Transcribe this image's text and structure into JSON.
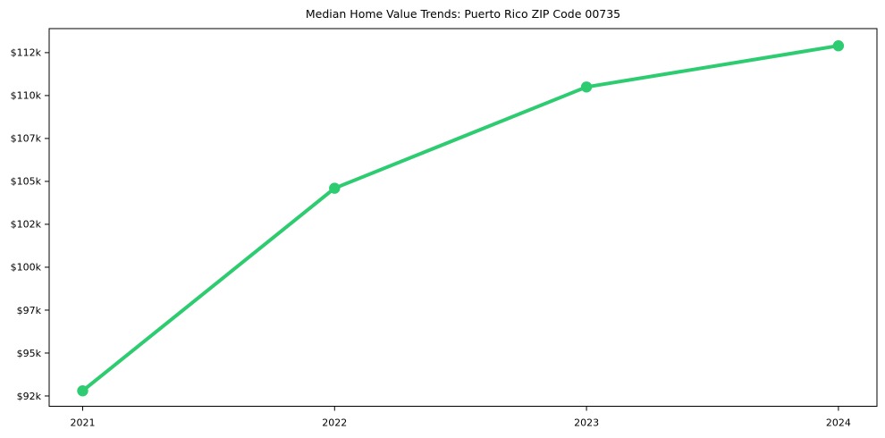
{
  "chart_data": {
    "type": "line",
    "title": "Median Home Value Trends: Puerto Rico ZIP Code 00735",
    "xlabel": "",
    "ylabel": "",
    "x": [
      2021,
      2022,
      2023,
      2024
    ],
    "x_tick_labels": [
      "2021",
      "2022",
      "2023",
      "2024"
    ],
    "series": [
      {
        "name": "Median Home Value",
        "values": [
          92800,
          104600,
          110500,
          112900
        ]
      }
    ],
    "y_ticks": [
      {
        "value": 92500,
        "label": "$92k"
      },
      {
        "value": 95000,
        "label": "$95k"
      },
      {
        "value": 97500,
        "label": "$97k"
      },
      {
        "value": 100000,
        "label": "$100k"
      },
      {
        "value": 102500,
        "label": "$102k"
      },
      {
        "value": 105000,
        "label": "$105k"
      },
      {
        "value": 107500,
        "label": "$107k"
      },
      {
        "value": 110000,
        "label": "$110k"
      },
      {
        "value": 112500,
        "label": "$112k"
      }
    ],
    "xlim": [
      2020.867,
      2024.153
    ],
    "ylim": [
      91900,
      113900
    ],
    "grid": false,
    "legend": "none",
    "line_color": "#2ecc71",
    "marker": "circle",
    "marker_color": "#2ecc71",
    "axis_color": "#000000",
    "background_color": "#ffffff"
  }
}
